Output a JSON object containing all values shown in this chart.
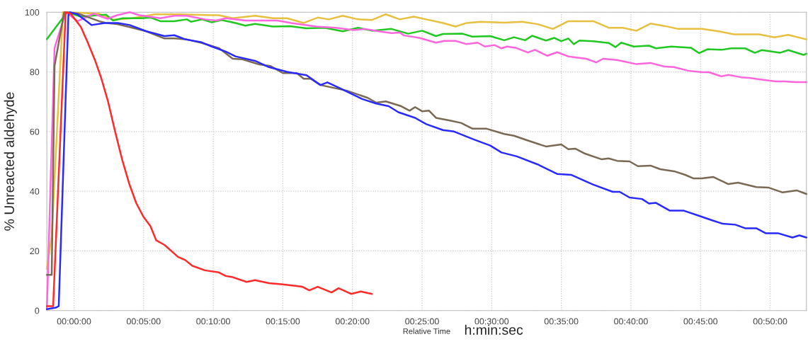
{
  "chart_data": {
    "type": "line",
    "xlabel": "Relative Time",
    "ylabel": "% Unreacted aldehyde",
    "annotations": [
      "h:min:sec"
    ],
    "xlim": [
      -0.0325,
      0.8767
    ],
    "ylim": [
      0,
      100
    ],
    "xticks": [
      {
        "value": 0,
        "label": "00:00:00"
      },
      {
        "value": 0.08333,
        "label": "00:05:00"
      },
      {
        "value": 0.16667,
        "label": "00:10:00"
      },
      {
        "value": 0.25,
        "label": "00:15:00"
      },
      {
        "value": 0.33333,
        "label": "00:20:00"
      },
      {
        "value": 0.41667,
        "label": "00:25:00"
      },
      {
        "value": 0.5,
        "label": "00:30:00"
      },
      {
        "value": 0.58333,
        "label": "00:35:00"
      },
      {
        "value": 0.66667,
        "label": "00:40:00"
      },
      {
        "value": 0.75,
        "label": "00:45:00"
      },
      {
        "value": 0.83333,
        "label": "00:50:00"
      }
    ],
    "yticks": [
      0,
      20,
      40,
      60,
      80,
      100
    ],
    "grid": true,
    "legend": false,
    "line_style": "solid",
    "marker": "none",
    "series": [
      {
        "color": "#e8c040",
        "x": [
          -0.0325,
          -0.0267,
          -0.0133,
          0.03,
          0.0467,
          0.07,
          0.0967,
          0.1233,
          0.165,
          0.1733,
          0.19,
          0.2167,
          0.2383,
          0.255,
          0.275,
          0.2917,
          0.305,
          0.3217,
          0.34,
          0.3567,
          0.3733,
          0.39,
          0.4067,
          0.4217,
          0.4417,
          0.4567,
          0.47,
          0.4867,
          0.515,
          0.5367,
          0.555,
          0.5733,
          0.5917,
          0.6217,
          0.64,
          0.6567,
          0.6733,
          0.69,
          0.7067,
          0.7233,
          0.7517,
          0.7717,
          0.79,
          0.82,
          0.8383,
          0.855,
          0.8767
        ],
        "values": [
          14,
          25,
          100,
          99.5,
          97.5,
          98,
          99.3,
          99.3,
          99,
          99,
          98,
          98.8,
          98,
          98,
          96.4,
          98.2,
          97.6,
          98.8,
          97.6,
          97.4,
          99.3,
          97.6,
          98.5,
          97.6,
          96.4,
          95.2,
          96.4,
          96.8,
          96.5,
          96.8,
          96,
          94.4,
          97,
          97,
          94.8,
          94.8,
          93.8,
          96.2,
          95.4,
          94.4,
          94.4,
          93.6,
          92.6,
          92.6,
          91.6,
          92.4,
          90.9
        ]
      },
      {
        "color": "#22c822",
        "x": [
          -0.0325,
          -0.0083,
          0.0083,
          0.0383,
          0.0467,
          0.0583,
          0.0817,
          0.0917,
          0.1033,
          0.12,
          0.135,
          0.14,
          0.1533,
          0.165,
          0.1767,
          0.1933,
          0.205,
          0.2167,
          0.2383,
          0.2583,
          0.2783,
          0.3,
          0.3217,
          0.34,
          0.3567,
          0.38,
          0.4,
          0.4167,
          0.4333,
          0.4417,
          0.465,
          0.4767,
          0.4983,
          0.515,
          0.5267,
          0.54,
          0.5483,
          0.565,
          0.575,
          0.5833,
          0.5917,
          0.5983,
          0.605,
          0.6217,
          0.64,
          0.6483,
          0.655,
          0.67,
          0.6883,
          0.6967,
          0.715,
          0.7383,
          0.7483,
          0.7583,
          0.775,
          0.7867,
          0.8033,
          0.815,
          0.8233,
          0.845,
          0.855,
          0.8733,
          0.8767
        ],
        "values": [
          91,
          100,
          98.5,
          99.2,
          97.2,
          98,
          98,
          98.2,
          97,
          97,
          97.6,
          96.8,
          97.6,
          96.6,
          97.4,
          96.4,
          95.5,
          96.1,
          95.2,
          95.3,
          94.6,
          94.8,
          93.6,
          94.8,
          93.8,
          94.4,
          92.8,
          93.8,
          92,
          92.7,
          92.8,
          91.8,
          92,
          90.6,
          91.6,
          90.6,
          92.1,
          90.5,
          91.4,
          90.3,
          91.2,
          89.3,
          90.5,
          90.3,
          89.7,
          88.3,
          89.8,
          88.5,
          88.8,
          87.9,
          88.5,
          88.1,
          86.3,
          87.6,
          87.4,
          87.9,
          87.9,
          86.4,
          87.3,
          86.4,
          87.3,
          85.7,
          86.1
        ]
      },
      {
        "color": "#ff66dd",
        "x": [
          -0.0325,
          -0.0233,
          -0.01,
          -0.005,
          0.0042,
          0.0233,
          0.04,
          0.0517,
          0.0667,
          0.0783,
          0.1033,
          0.12,
          0.135,
          0.1567,
          0.17,
          0.1817,
          0.205,
          0.2433,
          0.26,
          0.29,
          0.3133,
          0.335,
          0.3483,
          0.365,
          0.38,
          0.39,
          0.395,
          0.4133,
          0.4333,
          0.4433,
          0.4567,
          0.47,
          0.4833,
          0.4917,
          0.5033,
          0.5117,
          0.5183,
          0.5283,
          0.5433,
          0.5517,
          0.5667,
          0.5783,
          0.5917,
          0.6133,
          0.625,
          0.6333,
          0.65,
          0.6733,
          0.69,
          0.7067,
          0.7183,
          0.735,
          0.7517,
          0.76,
          0.775,
          0.7833,
          0.7983,
          0.8083,
          0.82,
          0.84,
          0.85,
          0.865,
          0.8767
        ],
        "values": [
          0.5,
          88,
          100,
          99,
          97,
          99.5,
          97.8,
          99,
          100,
          99,
          98,
          98.8,
          98.8,
          97.6,
          97.2,
          98,
          97.2,
          97.2,
          96.4,
          95.2,
          94.8,
          94,
          94.4,
          93.6,
          93,
          93.2,
          92.2,
          91.4,
          89.8,
          90.4,
          90.4,
          89.3,
          89.8,
          88.5,
          89,
          87.9,
          88.5,
          88.1,
          86.5,
          87.4,
          85.4,
          86.6,
          85.2,
          84.4,
          83.2,
          84.4,
          84,
          82.6,
          83,
          81.8,
          81.6,
          80.4,
          79.9,
          79.9,
          78.5,
          79,
          78.2,
          78,
          77.5,
          76.8,
          76.8,
          76.6,
          76.6
        ]
      },
      {
        "color": "#7a6a55",
        "x": [
          -0.0325,
          -0.0267,
          -0.0233,
          -0.0117,
          0.0042,
          0.03,
          0.0383,
          0.0517,
          0.0667,
          0.0867,
          0.1083,
          0.12,
          0.135,
          0.1517,
          0.1733,
          0.19,
          0.2017,
          0.2217,
          0.235,
          0.25,
          0.2667,
          0.275,
          0.2833,
          0.295,
          0.3267,
          0.3517,
          0.3617,
          0.3733,
          0.3917,
          0.4017,
          0.4083,
          0.4167,
          0.425,
          0.4333,
          0.45,
          0.4633,
          0.4767,
          0.4933,
          0.515,
          0.5267,
          0.5433,
          0.565,
          0.5833,
          0.5917,
          0.6,
          0.6117,
          0.6317,
          0.64,
          0.65,
          0.665,
          0.675,
          0.69,
          0.7017,
          0.7183,
          0.7317,
          0.7417,
          0.7517,
          0.765,
          0.7833,
          0.795,
          0.8167,
          0.8317,
          0.8483,
          0.865,
          0.8767
        ],
        "values": [
          12,
          12,
          82,
          100,
          99.6,
          97,
          96.4,
          96,
          95,
          93.6,
          91.2,
          91.2,
          90.9,
          89.8,
          88,
          84.4,
          84.2,
          82.5,
          82,
          79.6,
          79.6,
          77.7,
          77.7,
          75.6,
          73.7,
          71.3,
          69.7,
          70.1,
          68.5,
          67,
          68.2,
          66.8,
          67,
          64.6,
          63.7,
          62.9,
          61,
          61,
          59.2,
          58.6,
          57,
          55,
          55.7,
          54.1,
          54.3,
          52.6,
          50.7,
          51,
          50.2,
          50,
          48.4,
          48.6,
          47.4,
          46.7,
          45.5,
          44.3,
          44.3,
          44.8,
          42.4,
          42.9,
          41.4,
          41.2,
          39.6,
          40.3,
          39.1
        ]
      },
      {
        "color": "#2a2aff",
        "x": [
          -0.0325,
          -0.0217,
          -0.0183,
          -0.0067,
          -0.005,
          0.0042,
          0.0212,
          0.0367,
          0.0525,
          0.0667,
          0.0867,
          0.1083,
          0.12,
          0.1333,
          0.1517,
          0.165,
          0.1817,
          0.1933,
          0.2167,
          0.2333,
          0.255,
          0.2783,
          0.295,
          0.3033,
          0.3183,
          0.345,
          0.3617,
          0.3767,
          0.3883,
          0.4083,
          0.4217,
          0.4417,
          0.455,
          0.4783,
          0.4983,
          0.5117,
          0.53,
          0.555,
          0.5783,
          0.595,
          0.6217,
          0.645,
          0.6533,
          0.665,
          0.68,
          0.6883,
          0.6967,
          0.7133,
          0.73,
          0.7467,
          0.7633,
          0.7767,
          0.7917,
          0.8033,
          0.8167,
          0.8283,
          0.8433,
          0.86,
          0.8683,
          0.8767
        ],
        "values": [
          0.5,
          1,
          1.5,
          99,
          100,
          99.3,
          95.7,
          96.4,
          96.4,
          95.7,
          93.6,
          92,
          92.3,
          90.9,
          90,
          88.5,
          86.8,
          85.2,
          83.7,
          81.6,
          80,
          78.9,
          75.6,
          76.5,
          74.5,
          70.9,
          69.4,
          68.5,
          66.5,
          64.6,
          62.5,
          60.5,
          60,
          57.4,
          55.3,
          53,
          51.7,
          49,
          45.8,
          45.5,
          42.2,
          39.8,
          39.8,
          37.9,
          37.4,
          35.9,
          36.1,
          33.5,
          33.5,
          31.9,
          30.3,
          29.1,
          28.8,
          27.6,
          27.6,
          25.9,
          25.9,
          24.5,
          25.2,
          24.5
        ]
      },
      {
        "color": "#ff2a2a",
        "x": [
          -0.0325,
          -0.025,
          -0.01,
          -0.0042,
          0.0083,
          0.0167,
          0.025,
          0.0325,
          0.0408,
          0.0492,
          0.0577,
          0.066,
          0.0745,
          0.083,
          0.0915,
          0.0983,
          0.1083,
          0.1245,
          0.1328,
          0.1417,
          0.1567,
          0.1733,
          0.1817,
          0.19,
          0.2067,
          0.2167,
          0.2333,
          0.25,
          0.2733,
          0.2817,
          0.2917,
          0.3083,
          0.3167,
          0.3317,
          0.3433,
          0.3567
        ],
        "values": [
          1.5,
          1.5,
          100,
          99.6,
          95,
          89.7,
          84,
          78,
          70,
          60,
          50.5,
          42.6,
          36,
          31.5,
          28.3,
          23.6,
          22,
          18,
          17,
          15,
          13.5,
          12.8,
          11.6,
          11.2,
          9.6,
          10.2,
          9.2,
          8.8,
          8,
          6.8,
          8,
          6.1,
          7.5,
          5.6,
          6.4,
          5.6
        ]
      }
    ]
  }
}
